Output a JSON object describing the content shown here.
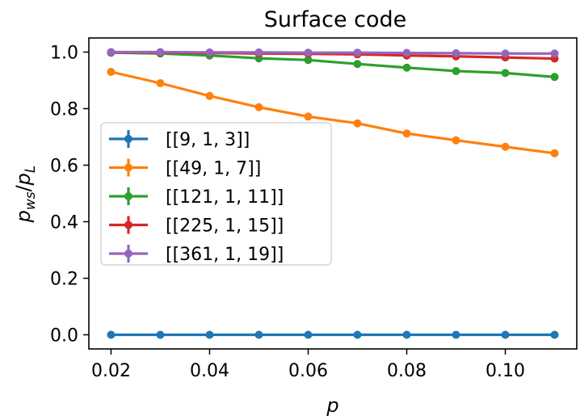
{
  "chart_data": {
    "type": "line",
    "title": "Surface code",
    "xlabel": "p",
    "ylabel": "p_ws/p_L",
    "ylabel_main": "p",
    "ylabel_sub1": "ws",
    "ylabel_sep": "/",
    "ylabel_main2": "p",
    "ylabel_sub2": "L",
    "xlim": [
      0.0155,
      0.1145
    ],
    "ylim": [
      -0.05,
      1.05
    ],
    "grid": false,
    "legend_position": "center-left",
    "x": [
      0.02,
      0.03,
      0.04,
      0.05,
      0.06,
      0.07,
      0.08,
      0.09,
      0.1,
      0.11
    ],
    "xticks": [
      0.02,
      0.04,
      0.06,
      0.08,
      0.1
    ],
    "xtick_labels": [
      "0.02",
      "0.04",
      "0.06",
      "0.08",
      "0.10"
    ],
    "yticks": [
      0.0,
      0.2,
      0.4,
      0.6,
      0.8,
      1.0
    ],
    "ytick_labels": [
      "0.0",
      "0.2",
      "0.4",
      "0.6",
      "0.8",
      "1.0"
    ],
    "series": [
      {
        "name": "[[9, 1, 3]]",
        "color": "#1f77b4",
        "values": [
          0.0,
          0.0,
          0.0,
          0.0,
          0.0,
          0.0,
          0.0,
          0.0,
          0.0,
          0.0
        ]
      },
      {
        "name": "[[49, 1, 7]]",
        "color": "#ff7f0e",
        "values": [
          0.93,
          0.89,
          0.845,
          0.805,
          0.772,
          0.748,
          0.712,
          0.688,
          0.665,
          0.642
        ]
      },
      {
        "name": "[[121, 1, 11]]",
        "color": "#2ca02c",
        "values": [
          0.998,
          0.995,
          0.988,
          0.978,
          0.972,
          0.958,
          0.945,
          0.933,
          0.926,
          0.912
        ]
      },
      {
        "name": "[[225, 1, 15]]",
        "color": "#d62728",
        "values": [
          0.999,
          0.998,
          0.997,
          0.995,
          0.994,
          0.992,
          0.988,
          0.985,
          0.981,
          0.977
        ]
      },
      {
        "name": "[[361, 1, 19]]",
        "color": "#9467bd",
        "values": [
          1.0,
          1.0,
          0.999,
          0.999,
          0.998,
          0.998,
          0.997,
          0.996,
          0.995,
          0.995
        ]
      }
    ]
  }
}
